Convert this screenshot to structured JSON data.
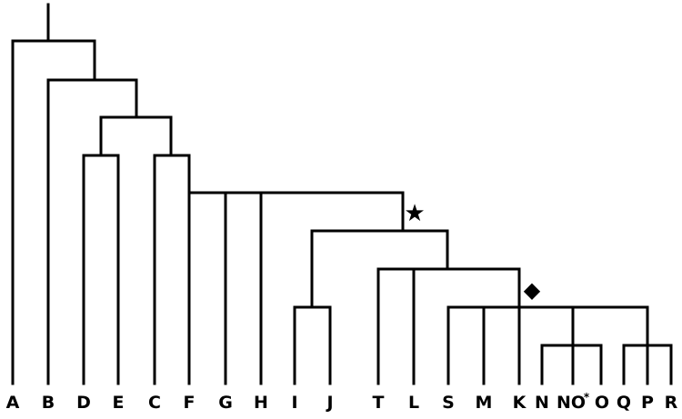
{
  "figure": {
    "taxa": [
      "A",
      "B",
      "D",
      "E",
      "C",
      "F",
      "G",
      "H",
      "I",
      "J",
      "T",
      "L",
      "S",
      "M",
      "K",
      "N",
      "NO",
      "*",
      "O",
      "Q",
      "P",
      "R"
    ]
  },
  "markers": {
    "star_symbol": "★",
    "diamond_symbol": "◆",
    "star_icon": "star-icon",
    "diamond_icon": "diamond-icon"
  },
  "colors": {
    "line": "#000000",
    "background": "#ffffff"
  }
}
